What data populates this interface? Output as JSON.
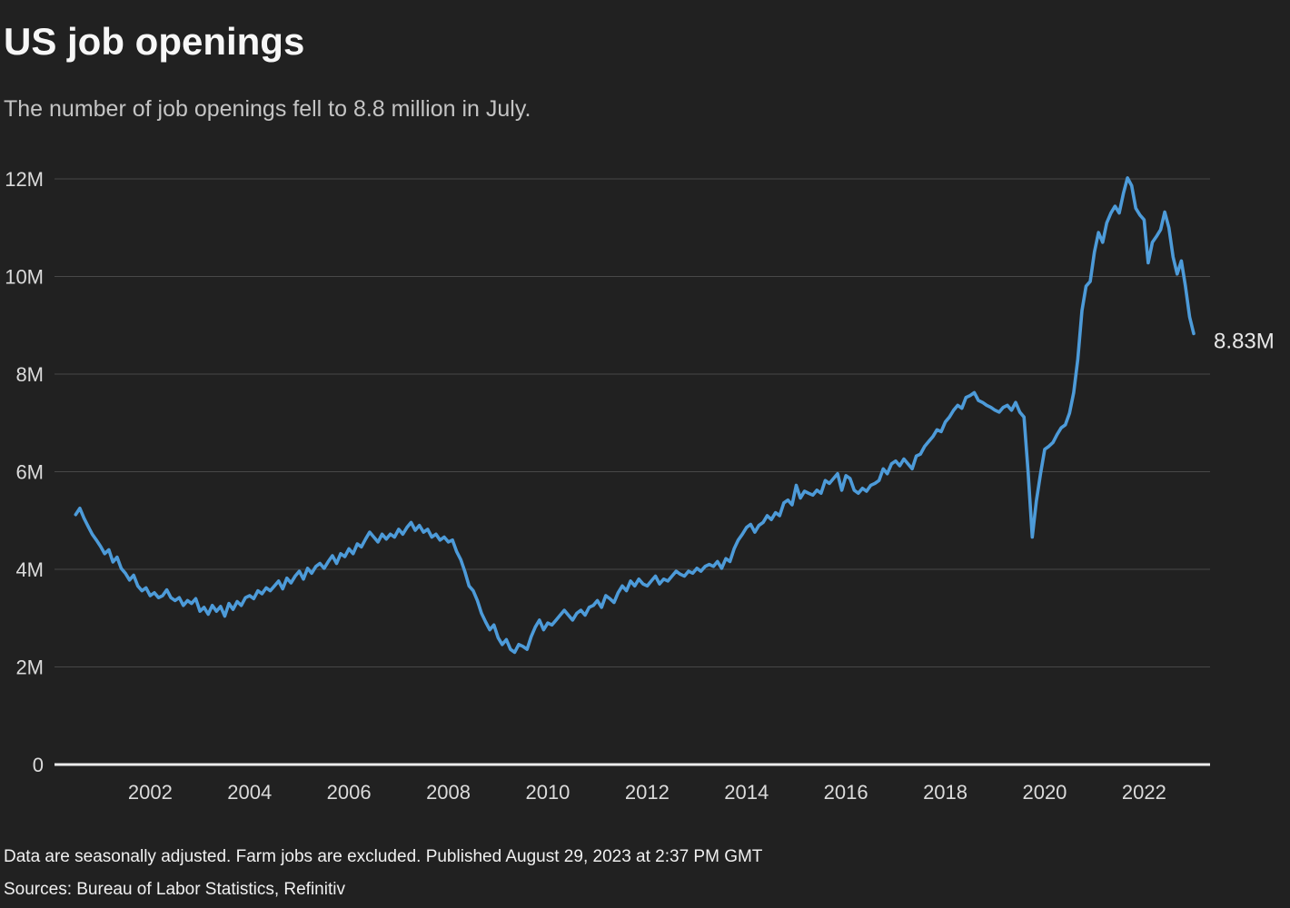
{
  "header": {
    "title": "US job openings",
    "subtitle": "The number of job openings fell to 8.8 million in July."
  },
  "footer": {
    "note": "Data are seasonally adjusted. Farm jobs are excluded. Published August 29, 2023 at 2:37 PM GMT",
    "sources": "Sources: Bureau of Labor Statistics, Refinitiv"
  },
  "colors": {
    "background": "#212121",
    "line": "#4D9BD9",
    "gridline": "#484848",
    "baseline": "#ECECEC",
    "title_text": "#F7F7F7",
    "subtitle_text": "#C4C4C4",
    "tick_text": "#DBDBDB"
  },
  "chart_data": {
    "type": "line",
    "title": "US job openings",
    "series_name": "US job openings (millions, monthly, seasonally adjusted)",
    "unit": "millions",
    "frequency": "monthly",
    "start_year": 2001,
    "start_month": 1,
    "end_period": "July 2023",
    "ylim": [
      0,
      12
    ],
    "grid": "horizontal",
    "legend": "none",
    "end_label": "8.83M",
    "yticks": [
      {
        "value": 0,
        "label": "0"
      },
      {
        "value": 2,
        "label": "2M"
      },
      {
        "value": 4,
        "label": "4M"
      },
      {
        "value": 6,
        "label": "6M"
      },
      {
        "value": 8,
        "label": "8M"
      },
      {
        "value": 10,
        "label": "10M"
      },
      {
        "value": 12,
        "label": "12M"
      }
    ],
    "xticks": [
      {
        "value": 2002,
        "label": "2002"
      },
      {
        "value": 2004,
        "label": "2004"
      },
      {
        "value": 2006,
        "label": "2006"
      },
      {
        "value": 2008,
        "label": "2008"
      },
      {
        "value": 2010,
        "label": "2010"
      },
      {
        "value": 2012,
        "label": "2012"
      },
      {
        "value": 2014,
        "label": "2014"
      },
      {
        "value": 2016,
        "label": "2016"
      },
      {
        "value": 2018,
        "label": "2018"
      },
      {
        "value": 2020,
        "label": "2020"
      },
      {
        "value": 2022,
        "label": "2022"
      }
    ],
    "values": [
      5.12,
      5.25,
      5.05,
      4.88,
      4.72,
      4.6,
      4.47,
      4.32,
      4.4,
      4.15,
      4.25,
      4.02,
      3.92,
      3.78,
      3.88,
      3.66,
      3.56,
      3.62,
      3.46,
      3.52,
      3.42,
      3.46,
      3.58,
      3.42,
      3.36,
      3.42,
      3.26,
      3.36,
      3.3,
      3.4,
      3.14,
      3.22,
      3.08,
      3.26,
      3.14,
      3.24,
      3.04,
      3.3,
      3.18,
      3.34,
      3.26,
      3.42,
      3.46,
      3.4,
      3.56,
      3.5,
      3.62,
      3.56,
      3.66,
      3.76,
      3.6,
      3.82,
      3.72,
      3.86,
      3.96,
      3.8,
      4.02,
      3.92,
      4.06,
      4.12,
      4.02,
      4.16,
      4.28,
      4.12,
      4.32,
      4.26,
      4.42,
      4.32,
      4.52,
      4.46,
      4.62,
      4.76,
      4.66,
      4.56,
      4.72,
      4.62,
      4.72,
      4.66,
      4.82,
      4.72,
      4.86,
      4.96,
      4.8,
      4.9,
      4.76,
      4.82,
      4.66,
      4.72,
      4.6,
      4.66,
      4.56,
      4.6,
      4.36,
      4.2,
      3.95,
      3.66,
      3.56,
      3.36,
      3.1,
      2.92,
      2.76,
      2.86,
      2.6,
      2.46,
      2.56,
      2.36,
      2.3,
      2.46,
      2.42,
      2.36,
      2.62,
      2.82,
      2.96,
      2.76,
      2.9,
      2.86,
      2.96,
      3.06,
      3.16,
      3.06,
      2.96,
      3.1,
      3.16,
      3.06,
      3.22,
      3.26,
      3.36,
      3.22,
      3.46,
      3.4,
      3.32,
      3.52,
      3.66,
      3.56,
      3.76,
      3.66,
      3.8,
      3.7,
      3.66,
      3.76,
      3.86,
      3.7,
      3.8,
      3.76,
      3.86,
      3.96,
      3.9,
      3.86,
      3.96,
      3.92,
      4.02,
      3.96,
      4.06,
      4.1,
      4.06,
      4.16,
      4.02,
      4.22,
      4.16,
      4.42,
      4.6,
      4.72,
      4.86,
      4.92,
      4.76,
      4.9,
      4.96,
      5.1,
      5.02,
      5.16,
      5.1,
      5.36,
      5.42,
      5.32,
      5.72,
      5.46,
      5.6,
      5.56,
      5.52,
      5.62,
      5.56,
      5.82,
      5.76,
      5.86,
      5.96,
      5.62,
      5.92,
      5.86,
      5.62,
      5.56,
      5.66,
      5.6,
      5.72,
      5.76,
      5.82,
      6.06,
      5.96,
      6.16,
      6.22,
      6.12,
      6.26,
      6.16,
      6.06,
      6.32,
      6.36,
      6.52,
      6.62,
      6.72,
      6.86,
      6.82,
      7.02,
      7.12,
      7.26,
      7.36,
      7.3,
      7.52,
      7.56,
      7.62,
      7.46,
      7.42,
      7.36,
      7.32,
      7.26,
      7.22,
      7.32,
      7.36,
      7.26,
      7.42,
      7.22,
      7.12,
      6.0,
      4.66,
      5.4,
      5.96,
      6.46,
      6.52,
      6.6,
      6.76,
      6.9,
      6.96,
      7.2,
      7.62,
      8.3,
      9.3,
      9.8,
      9.9,
      10.5,
      10.9,
      10.7,
      11.1,
      11.3,
      11.44,
      11.3,
      11.7,
      12.02,
      11.86,
      11.4,
      11.26,
      11.16,
      10.28,
      10.7,
      10.82,
      10.96,
      11.32,
      11.0,
      10.4,
      10.05,
      10.32,
      9.8,
      9.17,
      8.83
    ]
  }
}
